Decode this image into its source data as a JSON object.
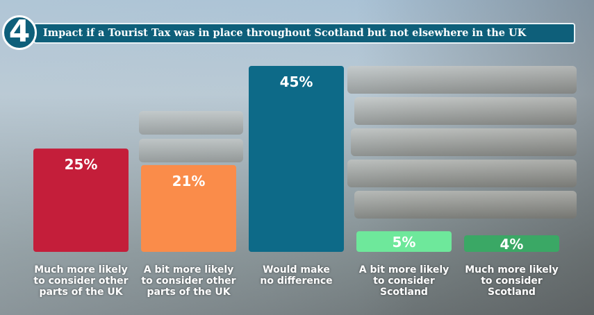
{
  "header": {
    "badge_number": "4",
    "title": "Impact if a Tourist Tax was in place throughout Scotland but not elsewhere in the UK"
  },
  "chart_data": {
    "type": "bar",
    "title": "Impact if a Tourist Tax was in place throughout Scotland but not elsewhere in the UK",
    "categories": [
      "Much more likely to consider other parts of the UK",
      "A bit more likely to consider other parts of the UK",
      "Would make no difference",
      "A bit more likely to consider Scotland",
      "Much more likely to consider Scotland"
    ],
    "category_lines": [
      [
        "Much more likely",
        "to consider other",
        "parts of the UK"
      ],
      [
        "A bit more likely",
        "to consider other",
        "parts of the UK"
      ],
      [
        "Would make",
        "no difference"
      ],
      [
        "A bit more likely",
        "to consider",
        "Scotland"
      ],
      [
        "Much more likely",
        "to consider",
        "Scotland"
      ]
    ],
    "values": [
      25,
      21,
      45,
      5,
      4
    ],
    "value_labels": [
      "25%",
      "21%",
      "45%",
      "5%",
      "4%"
    ],
    "colors": [
      "#c41e3a",
      "#fa8c4a",
      "#0d6a88",
      "#6ee89b",
      "#3aa865"
    ],
    "label_colors": [
      "#ffffff",
      "#ffffff",
      "#ffffff",
      "#ffffff",
      "#ffffff"
    ],
    "xlabel": "",
    "ylabel": "",
    "ylim": [
      0,
      45
    ],
    "grid": false,
    "legend": "none"
  }
}
